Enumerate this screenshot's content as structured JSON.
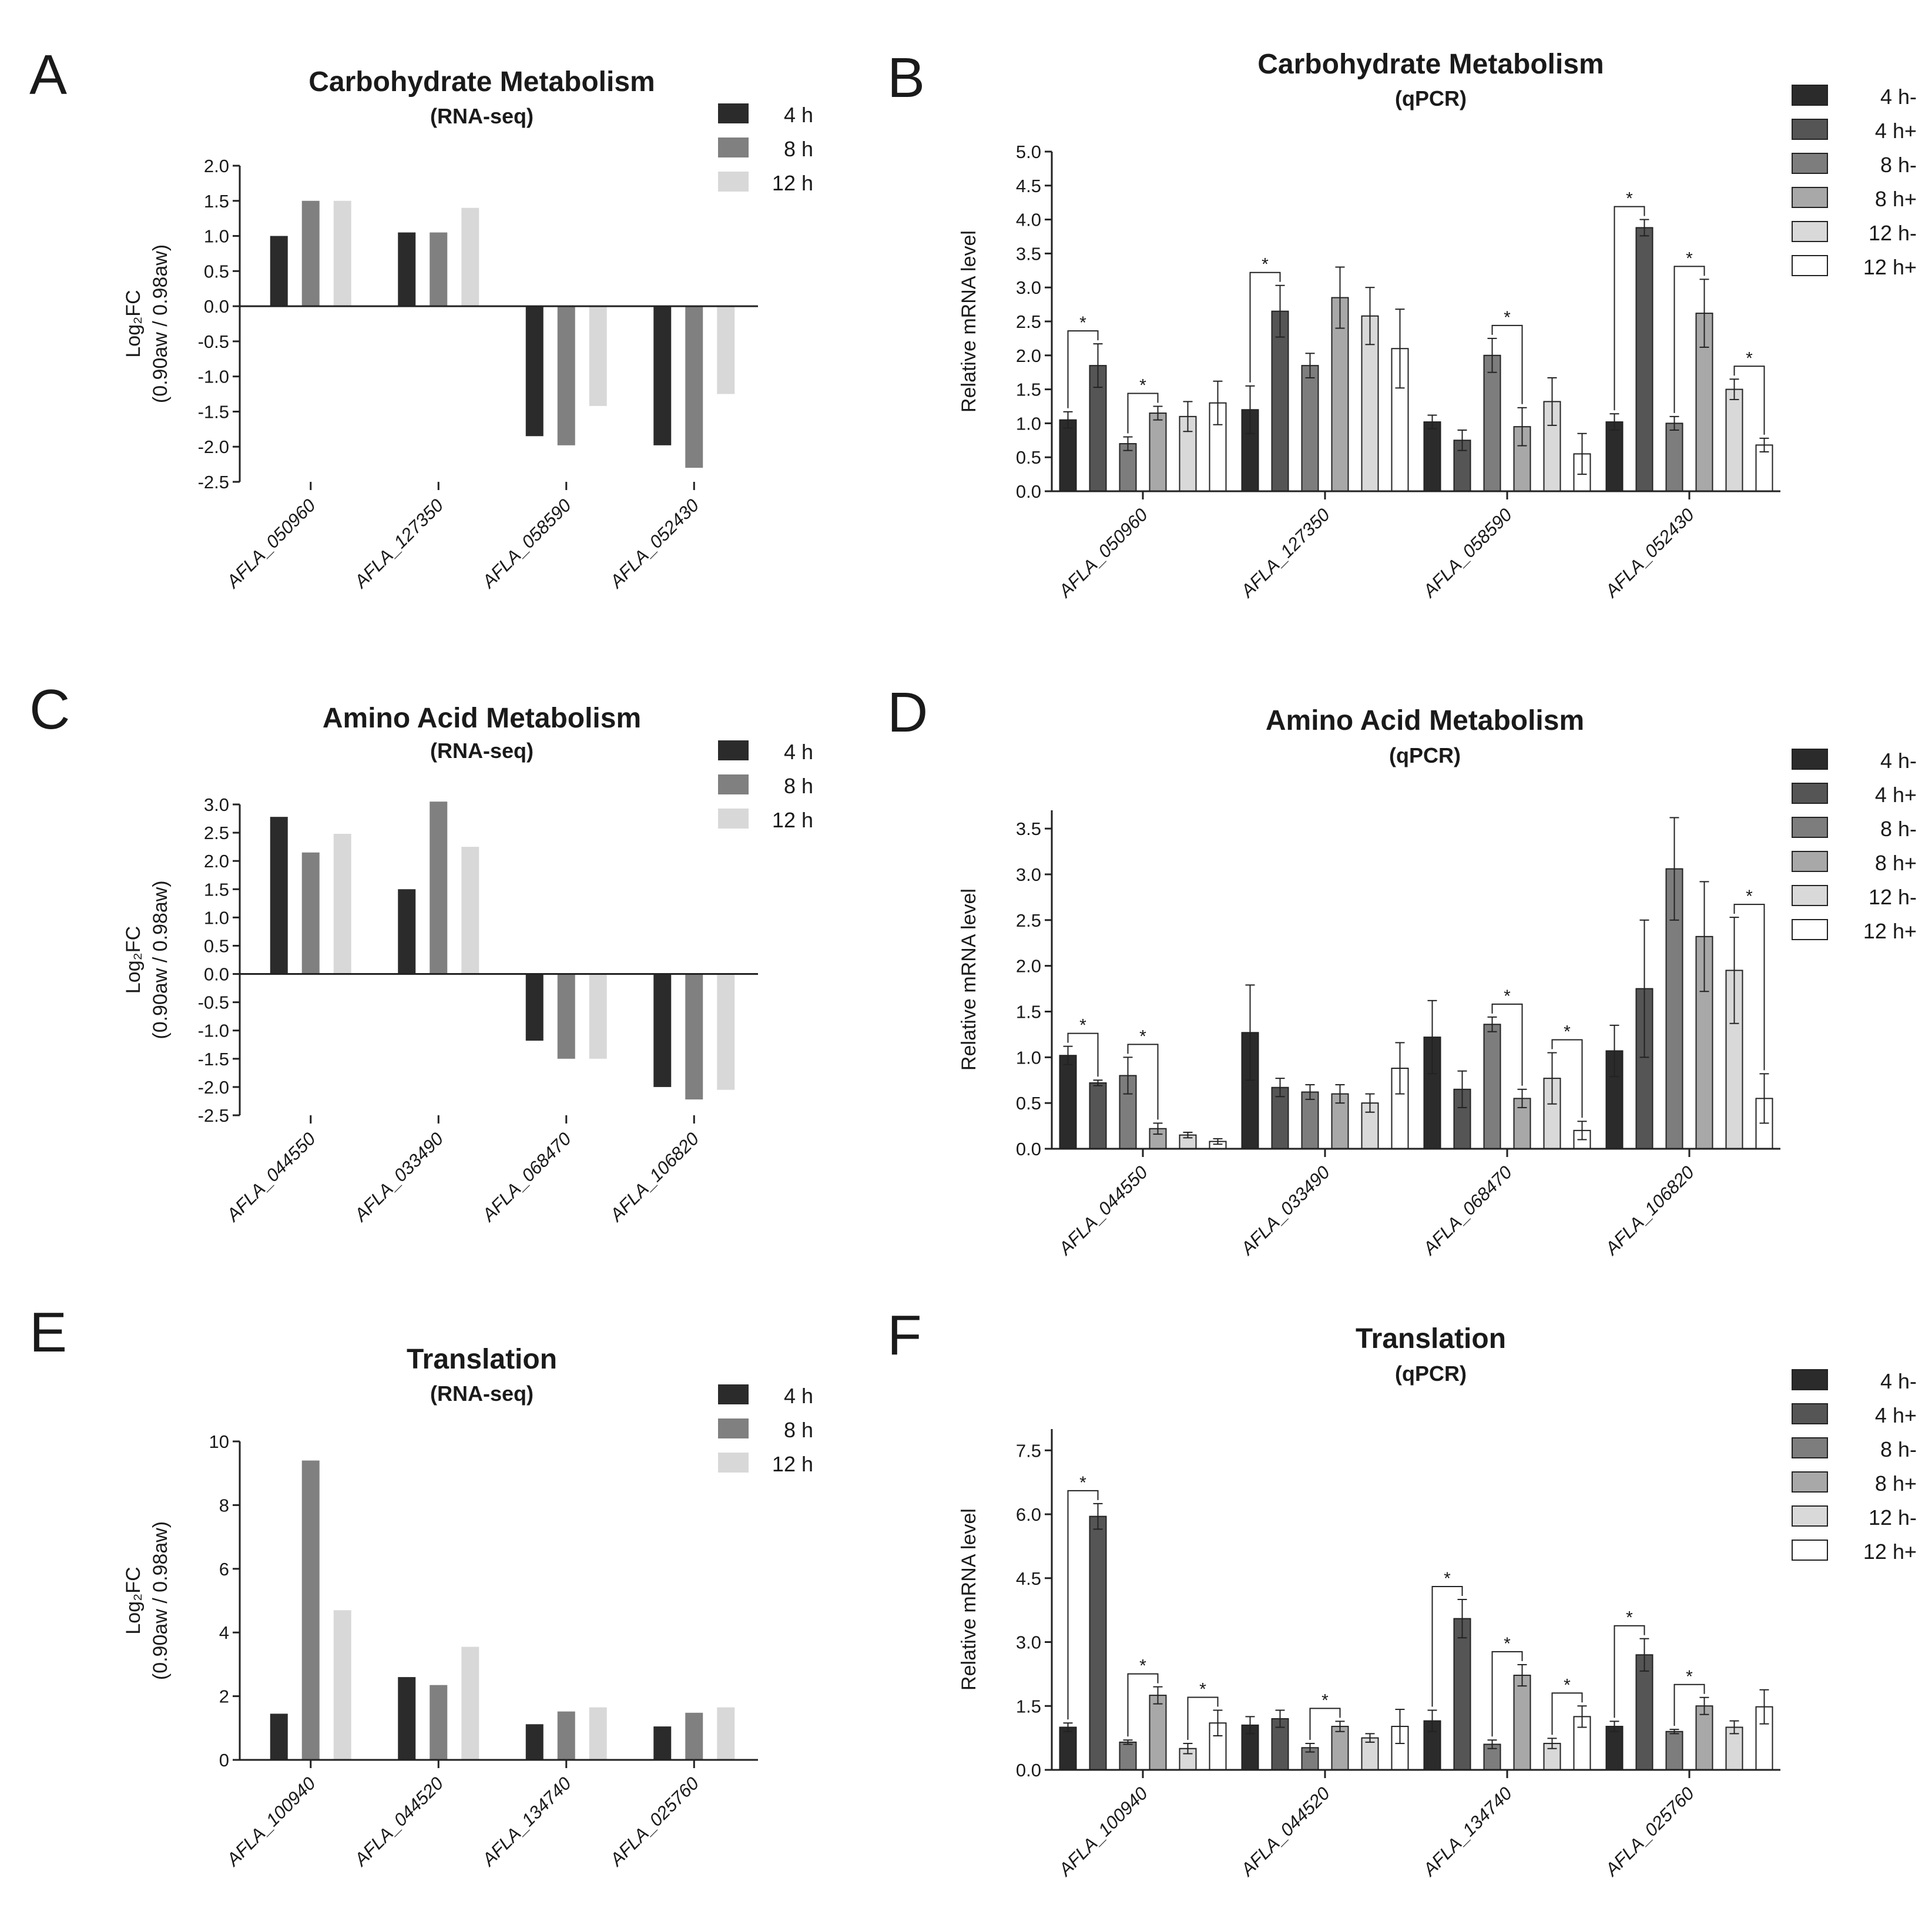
{
  "chart_data": [
    {
      "panel": "A",
      "type": "bar",
      "title": "Carbohydrate Metabolism",
      "subtitle": "(RNA-seq)",
      "ylabel": [
        "Log₂FC",
        "(0.90aw / 0.98aw)"
      ],
      "ylim": [
        -2.5,
        2.0
      ],
      "yticks": [
        "2.0",
        "1.5",
        "1.0",
        "0.5",
        "0.0",
        "-0.5",
        "-1.0",
        "-1.5",
        "-2.0",
        "-2.5"
      ],
      "categories": [
        "AFLA_050960",
        "AFLA_127350",
        "AFLA_058590",
        "AFLA_052430"
      ],
      "legend": [
        "4 h",
        "8 h",
        "12 h"
      ],
      "colors": [
        "#2b2b2b",
        "#808080",
        "#d8d8d8"
      ],
      "series": [
        {
          "name": "4 h",
          "values": [
            1.0,
            1.05,
            -1.85,
            -1.98
          ]
        },
        {
          "name": "8 h",
          "values": [
            1.5,
            1.05,
            -1.98,
            -2.3
          ]
        },
        {
          "name": "12 h",
          "values": [
            1.5,
            1.4,
            -1.42,
            -1.25
          ]
        }
      ]
    },
    {
      "panel": "B",
      "type": "bar",
      "title": "Carbohydrate Metabolism",
      "subtitle": "(qPCR)",
      "ylabel": [
        "Relative mRNA level"
      ],
      "ylim": [
        0,
        5.0
      ],
      "yticks": [
        "5.0",
        "4.5",
        "4.0",
        "3.5",
        "3.0",
        "2.5",
        "2.0",
        "1.5",
        "1.0",
        "0.5",
        "0.0"
      ],
      "categories": [
        "AFLA_050960",
        "AFLA_127350",
        "AFLA_058590",
        "AFLA_052430"
      ],
      "legend": [
        "4  h-",
        "4  h+",
        "8  h-",
        "8  h+",
        "12 h-",
        "12 h+"
      ],
      "colors": [
        "#2b2b2b",
        "#555555",
        "#7d7d7d",
        "#a8a8a8",
        "#d9d9d9",
        "#ffffff"
      ],
      "series": [
        {
          "name": "4 h-",
          "values": [
            1.05,
            1.2,
            1.02,
            1.02
          ],
          "errors": [
            0.12,
            0.35,
            0.1,
            0.12
          ]
        },
        {
          "name": "4 h+",
          "values": [
            1.85,
            2.65,
            0.75,
            3.88
          ],
          "errors": [
            0.32,
            0.38,
            0.15,
            0.12
          ]
        },
        {
          "name": "8 h-",
          "values": [
            0.7,
            1.85,
            2.0,
            1.0
          ],
          "errors": [
            0.1,
            0.18,
            0.25,
            0.1
          ]
        },
        {
          "name": "8 h+",
          "values": [
            1.15,
            2.85,
            0.95,
            2.62
          ],
          "errors": [
            0.1,
            0.45,
            0.28,
            0.5
          ]
        },
        {
          "name": "12 h-",
          "values": [
            1.1,
            2.58,
            1.32,
            1.5
          ],
          "errors": [
            0.22,
            0.42,
            0.35,
            0.15
          ]
        },
        {
          "name": "12 h+",
          "values": [
            1.3,
            2.1,
            0.55,
            0.68
          ],
          "errors": [
            0.32,
            0.58,
            0.3,
            0.1
          ]
        }
      ],
      "significance": [
        {
          "category": 0,
          "pair": [
            0,
            1
          ],
          "label": "*"
        },
        {
          "category": 0,
          "pair": [
            2,
            3
          ],
          "label": "*"
        },
        {
          "category": 1,
          "pair": [
            0,
            1
          ],
          "label": "*"
        },
        {
          "category": 2,
          "pair": [
            2,
            3
          ],
          "label": "*"
        },
        {
          "category": 3,
          "pair": [
            0,
            1
          ],
          "label": "*"
        },
        {
          "category": 3,
          "pair": [
            2,
            3
          ],
          "label": "*"
        },
        {
          "category": 3,
          "pair": [
            4,
            5
          ],
          "label": "*"
        }
      ]
    },
    {
      "panel": "C",
      "type": "bar",
      "title": "Amino Acid Metabolism",
      "subtitle": "(RNA-seq)",
      "ylabel": [
        "Log₂FC",
        "(0.90aw / 0.98aw)"
      ],
      "ylim": [
        -2.5,
        3.0
      ],
      "yticks": [
        "3.0",
        "2.5",
        "2.0",
        "1.5",
        "1.0",
        "0.5",
        "0.0",
        "-0.5",
        "-1.0",
        "-1.5",
        "-2.0",
        "-2.5"
      ],
      "categories": [
        "AFLA_044550",
        "AFLA_033490",
        "AFLA_068470",
        "AFLA_106820"
      ],
      "legend": [
        "4 h",
        "8 h",
        "12 h"
      ],
      "colors": [
        "#2b2b2b",
        "#808080",
        "#d8d8d8"
      ],
      "series": [
        {
          "name": "4 h",
          "values": [
            2.78,
            1.5,
            -1.18,
            -2.0
          ]
        },
        {
          "name": "8 h",
          "values": [
            2.15,
            3.05,
            -1.5,
            -2.22
          ]
        },
        {
          "name": "12 h",
          "values": [
            2.48,
            2.25,
            -1.5,
            -2.05
          ]
        }
      ]
    },
    {
      "panel": "D",
      "type": "bar",
      "title": "Amino Acid Metabolism",
      "subtitle": "(qPCR)",
      "ylabel": [
        "Relative mRNA level"
      ],
      "ylim": [
        0,
        3.7
      ],
      "yticks": [
        "3.5",
        "3.0",
        "2.5",
        "2.0",
        "1.5",
        "1.0",
        "0.5",
        "0.0"
      ],
      "categories": [
        "AFLA_044550",
        "AFLA_033490",
        "AFLA_068470",
        "AFLA_106820"
      ],
      "legend": [
        "4  h-",
        "4  h+",
        "8  h-",
        "8  h+",
        "12 h-",
        "12 h+"
      ],
      "colors": [
        "#2b2b2b",
        "#555555",
        "#7d7d7d",
        "#a8a8a8",
        "#d9d9d9",
        "#ffffff"
      ],
      "series": [
        {
          "name": "4 h-",
          "values": [
            1.02,
            1.27,
            1.22,
            1.07
          ],
          "errors": [
            0.1,
            0.52,
            0.4,
            0.28
          ]
        },
        {
          "name": "4 h+",
          "values": [
            0.72,
            0.67,
            0.65,
            1.75
          ],
          "errors": [
            0.03,
            0.1,
            0.2,
            0.75
          ]
        },
        {
          "name": "8 h-",
          "values": [
            0.8,
            0.62,
            1.36,
            3.06
          ],
          "errors": [
            0.2,
            0.08,
            0.08,
            0.56
          ]
        },
        {
          "name": "8 h+",
          "values": [
            0.22,
            0.6,
            0.55,
            2.32
          ],
          "errors": [
            0.06,
            0.1,
            0.1,
            0.6
          ]
        },
        {
          "name": "12 h-",
          "values": [
            0.15,
            0.5,
            0.77,
            1.95
          ],
          "errors": [
            0.03,
            0.1,
            0.28,
            0.58
          ]
        },
        {
          "name": "12 h+",
          "values": [
            0.08,
            0.88,
            0.2,
            0.55
          ],
          "errors": [
            0.03,
            0.28,
            0.1,
            0.27
          ]
        }
      ],
      "significance": [
        {
          "category": 0,
          "pair": [
            0,
            1
          ],
          "label": "*"
        },
        {
          "category": 0,
          "pair": [
            2,
            3
          ],
          "label": "*"
        },
        {
          "category": 2,
          "pair": [
            2,
            3
          ],
          "label": "*"
        },
        {
          "category": 2,
          "pair": [
            4,
            5
          ],
          "label": "*"
        },
        {
          "category": 3,
          "pair": [
            4,
            5
          ],
          "label": "*"
        }
      ]
    },
    {
      "panel": "E",
      "type": "bar",
      "title": "Translation",
      "subtitle": "(RNA-seq)",
      "ylabel": [
        "Log₂FC",
        "(0.90aw / 0.98aw)"
      ],
      "ylim": [
        0,
        10
      ],
      "yticks": [
        "10",
        "8",
        "6",
        "4",
        "2",
        "0"
      ],
      "categories": [
        "AFLA_100940",
        "AFLA_044520",
        "AFLA_134740",
        "AFLA_025760"
      ],
      "legend": [
        "4 h",
        "8 h",
        "12 h"
      ],
      "colors": [
        "#2b2b2b",
        "#808080",
        "#d8d8d8"
      ],
      "series": [
        {
          "name": "4 h",
          "values": [
            1.45,
            2.6,
            1.12,
            1.05
          ]
        },
        {
          "name": "8 h",
          "values": [
            9.4,
            2.35,
            1.52,
            1.48
          ]
        },
        {
          "name": "12 h",
          "values": [
            4.7,
            3.55,
            1.65,
            1.65
          ]
        }
      ]
    },
    {
      "panel": "F",
      "type": "bar",
      "title": "Translation",
      "subtitle": "(qPCR)",
      "ylabel": [
        "Relative mRNA level"
      ],
      "ylim": [
        0,
        8.0
      ],
      "yticks": [
        "7.5",
        "6.0",
        "4.5",
        "3.0",
        "1.5",
        "0.0"
      ],
      "categories": [
        "AFLA_100940",
        "AFLA_044520",
        "AFLA_134740",
        "AFLA_025760"
      ],
      "legend": [
        "4  h-",
        "4  h+",
        "8  h-",
        "8  h+",
        "12 h-",
        "12 h+"
      ],
      "colors": [
        "#2b2b2b",
        "#555555",
        "#7d7d7d",
        "#a8a8a8",
        "#d9d9d9",
        "#ffffff"
      ],
      "series": [
        {
          "name": "4 h-",
          "values": [
            1.0,
            1.05,
            1.15,
            1.02
          ],
          "errors": [
            0.1,
            0.2,
            0.25,
            0.12
          ]
        },
        {
          "name": "4 h+",
          "values": [
            5.95,
            1.2,
            3.55,
            2.7
          ],
          "errors": [
            0.3,
            0.2,
            0.45,
            0.38
          ]
        },
        {
          "name": "8 h-",
          "values": [
            0.65,
            0.52,
            0.6,
            0.9
          ],
          "errors": [
            0.05,
            0.1,
            0.1,
            0.05
          ]
        },
        {
          "name": "8 h+",
          "values": [
            1.75,
            1.02,
            2.22,
            1.5
          ],
          "errors": [
            0.2,
            0.12,
            0.25,
            0.2
          ]
        },
        {
          "name": "12 h-",
          "values": [
            0.5,
            0.75,
            0.62,
            1.0
          ],
          "errors": [
            0.12,
            0.1,
            0.12,
            0.15
          ]
        },
        {
          "name": "12 h+",
          "values": [
            1.1,
            1.02,
            1.25,
            1.48
          ],
          "errors": [
            0.3,
            0.4,
            0.25,
            0.4
          ]
        }
      ],
      "significance": [
        {
          "category": 0,
          "pair": [
            0,
            1
          ],
          "label": "*"
        },
        {
          "category": 0,
          "pair": [
            2,
            3
          ],
          "label": "*"
        },
        {
          "category": 0,
          "pair": [
            4,
            5
          ],
          "label": "*"
        },
        {
          "category": 1,
          "pair": [
            2,
            3
          ],
          "label": "*"
        },
        {
          "category": 2,
          "pair": [
            0,
            1
          ],
          "label": "*"
        },
        {
          "category": 2,
          "pair": [
            2,
            3
          ],
          "label": "*"
        },
        {
          "category": 2,
          "pair": [
            4,
            5
          ],
          "label": "*"
        },
        {
          "category": 3,
          "pair": [
            0,
            1
          ],
          "label": "*"
        },
        {
          "category": 3,
          "pair": [
            2,
            3
          ],
          "label": "*"
        }
      ]
    }
  ]
}
